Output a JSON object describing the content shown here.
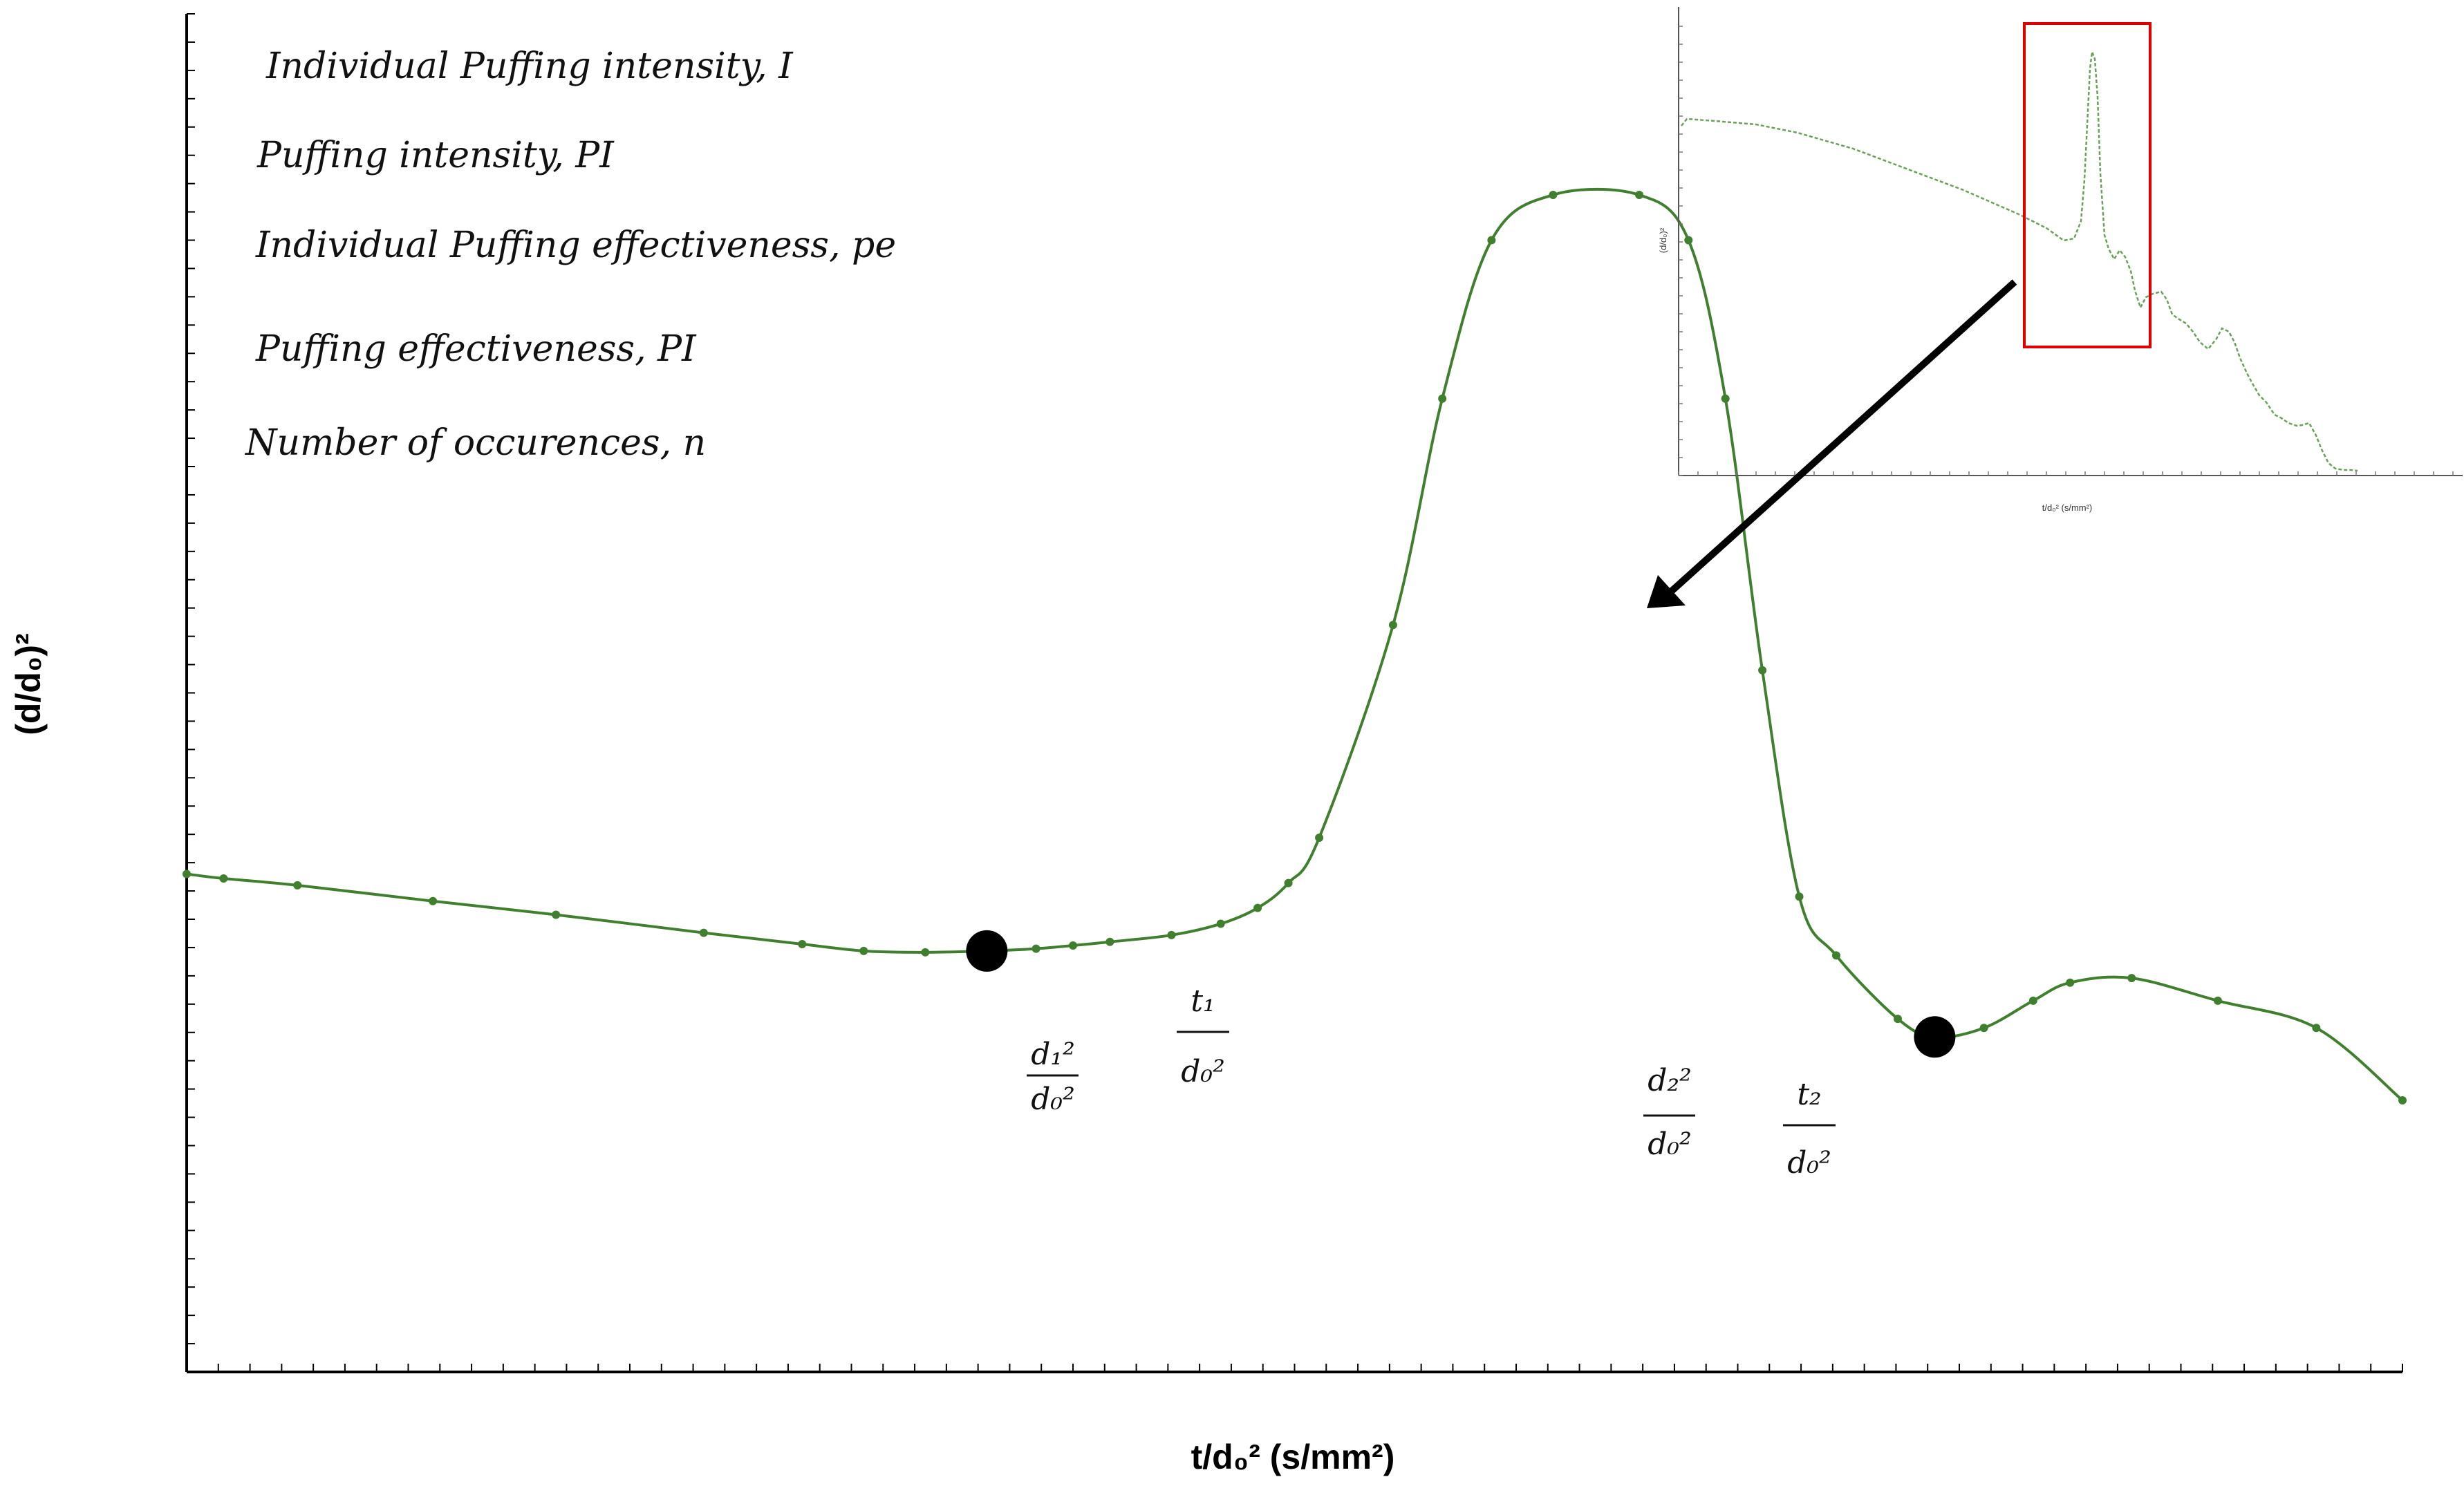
{
  "chart_data": {
    "type": "line",
    "title": "",
    "xlabel": "t/d₀² (s/mm²)",
    "ylabel": "(d/d₀)²",
    "grid": false,
    "legend": "none",
    "line_color": "#3f7f2e",
    "x": [
      0.0,
      0.3,
      0.9,
      2.0,
      3.0,
      4.2,
      5.0,
      5.5,
      6.0,
      6.5,
      6.9,
      7.2,
      7.5,
      8.0,
      8.4,
      8.7,
      8.95,
      9.2,
      9.8,
      10.2,
      10.6,
      11.1,
      11.8,
      12.2,
      12.5,
      12.8,
      13.1,
      13.4,
      13.9,
      14.2,
      14.6,
      15.0,
      15.3,
      15.8,
      16.5,
      17.3,
      18.0
    ],
    "y": [
      0.5,
      0.49,
      0.475,
      0.44,
      0.41,
      0.37,
      0.345,
      0.33,
      0.327,
      0.33,
      0.335,
      0.342,
      0.35,
      0.365,
      0.39,
      0.425,
      0.48,
      0.58,
      1.05,
      1.55,
      1.9,
      2.0,
      2.0,
      1.9,
      1.55,
      0.95,
      0.45,
      0.32,
      0.18,
      0.14,
      0.16,
      0.22,
      0.26,
      0.27,
      0.22,
      0.16,
      0.0
    ],
    "points": [
      {
        "x": 6.5,
        "y": 0.33,
        "label_d": "d₁²/d₀²",
        "label_t": "t₁/d₀²"
      },
      {
        "x": 14.2,
        "y": 0.14,
        "label_d": "d₂²/d₀²",
        "label_t": "t₂/d₀²"
      }
    ],
    "annotations": [
      "Individual Puffing intensity, I",
      "Puffing intensity, PI",
      "Individual Puffing effectiveness, pe",
      "Puffing effectiveness, PI",
      "Number of occurences, n"
    ],
    "inset": {
      "xlabel": "t/d₀² (s/mm²)",
      "ylabel": "(d/d₀)²",
      "highlight_color": "#e00000"
    }
  }
}
